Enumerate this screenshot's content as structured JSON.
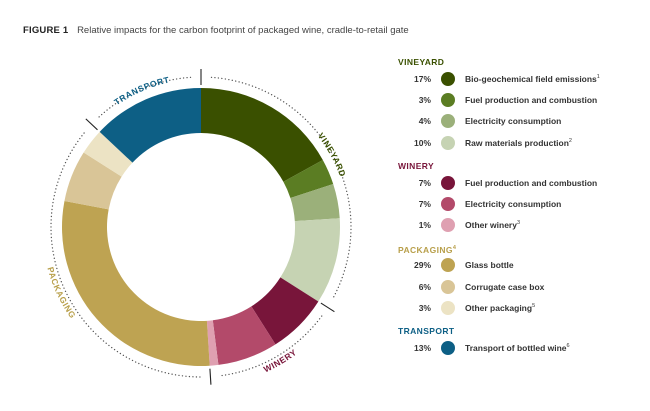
{
  "figure": {
    "number": "FIGURE 1",
    "caption": "Relative impacts for the carbon footprint of packaged wine, cradle-to-retail gate"
  },
  "chart_data": {
    "type": "pie",
    "variant": "donut",
    "title": "Relative impacts for the carbon footprint of packaged wine, cradle-to-retail gate",
    "unit": "%",
    "start_angle_deg": 0,
    "direction": "clockwise",
    "groups": [
      {
        "name": "VINEYARD",
        "name_sup": "",
        "color": "#3a5000",
        "items": [
          {
            "label": "Bio-geochemical field emissions",
            "sup": "1",
            "value": 17,
            "pct_text": "17%",
            "color": "#3a5000"
          },
          {
            "label": "Fuel production and combustion",
            "sup": "",
            "value": 3,
            "pct_text": "3%",
            "color": "#5b7d23"
          },
          {
            "label": "Electricity consumption",
            "sup": "",
            "value": 4,
            "pct_text": "4%",
            "color": "#9bb07a"
          },
          {
            "label": "Raw materials production",
            "sup": "2",
            "value": 10,
            "pct_text": "10%",
            "color": "#c6d3b3"
          }
        ]
      },
      {
        "name": "WINERY",
        "name_sup": "",
        "color": "#78153a",
        "items": [
          {
            "label": "Fuel production and combustion",
            "sup": "",
            "value": 7,
            "pct_text": "7%",
            "color": "#78153a"
          },
          {
            "label": "Electricity consumption",
            "sup": "",
            "value": 7,
            "pct_text": "7%",
            "color": "#b34a6a"
          },
          {
            "label": "Other winery",
            "sup": "3",
            "value": 1,
            "pct_text": "1%",
            "color": "#dfa0b1"
          }
        ]
      },
      {
        "name": "PACKAGING",
        "name_sup": "4",
        "color": "#b89f4a",
        "items": [
          {
            "label": "Glass bottle",
            "sup": "",
            "value": 29,
            "pct_text": "29%",
            "color": "#bea352"
          },
          {
            "label": "Corrugate case box",
            "sup": "",
            "value": 6,
            "pct_text": "6%",
            "color": "#d9c597"
          },
          {
            "label": "Other packaging",
            "sup": "5",
            "value": 3,
            "pct_text": "3%",
            "color": "#ece3c4"
          }
        ]
      },
      {
        "name": "TRANSPORT",
        "name_sup": "",
        "color": "#0d5f85",
        "items": [
          {
            "label": "Transport of bottled wine",
            "sup": "6",
            "value": 13,
            "pct_text": "13%",
            "color": "#0d5f85"
          }
        ]
      }
    ]
  }
}
